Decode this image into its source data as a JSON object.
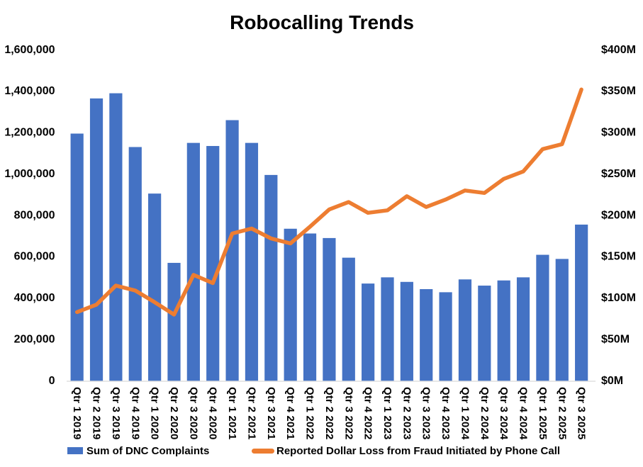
{
  "title": "Robocalling Trends",
  "legend": {
    "bar_label": "Sum of DNC Complaints",
    "line_label": "Reported Dollar Loss from Fraud Initiated by Phone Call"
  },
  "colors": {
    "bar": "#4472C4",
    "line": "#ED7D31",
    "axis_line": "#D9D9D9",
    "text": "#000000",
    "background": "#FFFFFF"
  },
  "chart_data": {
    "type": "combo",
    "title": "Robocalling Trends",
    "grid": false,
    "legend_position": "bottom",
    "categories": [
      "Qtr 1 2019",
      "Qtr 2 2019",
      "Qtr 3 2019",
      "Qtr 4 2019",
      "Qtr 1 2020",
      "Qtr 2 2020",
      "Qtr 3 2020",
      "Qtr 4 2020",
      "Qtr 1 2021",
      "Qtr 2 2021",
      "Qtr 3 2021",
      "Qtr 4 2021",
      "Qtr 1 2022",
      "Qtr 2 2022",
      "Qtr 3 2022",
      "Qtr 4 2022",
      "Qtr 1 2023",
      "Qtr 2 2023",
      "Qtr 3 2023",
      "Qtr 4 2023",
      "Qtr 1 2024",
      "Qtr 2 2024",
      "Qtr 3 2024",
      "Qtr 4 2024",
      "Qtr 1 2025",
      "Qtr 2 2025",
      "Qtr 3 2025"
    ],
    "series": [
      {
        "name": "Sum of DNC Complaints",
        "type": "bar",
        "axis": "left",
        "color": "#4472C4",
        "values": [
          1195000,
          1365000,
          1390000,
          1130000,
          905000,
          570000,
          1150000,
          1135000,
          1260000,
          1150000,
          995000,
          735000,
          712000,
          690000,
          595000,
          470000,
          500000,
          478000,
          443000,
          428000,
          490000,
          460000,
          485000,
          500000,
          609000,
          589000,
          755000
        ]
      },
      {
        "name": "Reported Dollar Loss from Fraud Initiated by Phone Call",
        "type": "line",
        "axis": "right",
        "color": "#ED7D31",
        "units": "millions_usd",
        "values": [
          83,
          92,
          115,
          109,
          95,
          80,
          128,
          118,
          178,
          184,
          172,
          166,
          186,
          207,
          216,
          203,
          206,
          223,
          210,
          219,
          230,
          227,
          244,
          253,
          280,
          286,
          352
        ]
      }
    ],
    "left_axis": {
      "min": 0,
      "max": 1600000,
      "step": 200000,
      "tick_labels": [
        "0",
        "200,000",
        "400,000",
        "600,000",
        "800,000",
        "1,000,000",
        "1,200,000",
        "1,400,000",
        "1,600,000"
      ]
    },
    "right_axis": {
      "min": 0,
      "max": 400,
      "step": 50,
      "tick_labels": [
        "$0M",
        "$50M",
        "$100M",
        "$150M",
        "$200M",
        "$250M",
        "$300M",
        "$350M",
        "$400M"
      ]
    }
  }
}
